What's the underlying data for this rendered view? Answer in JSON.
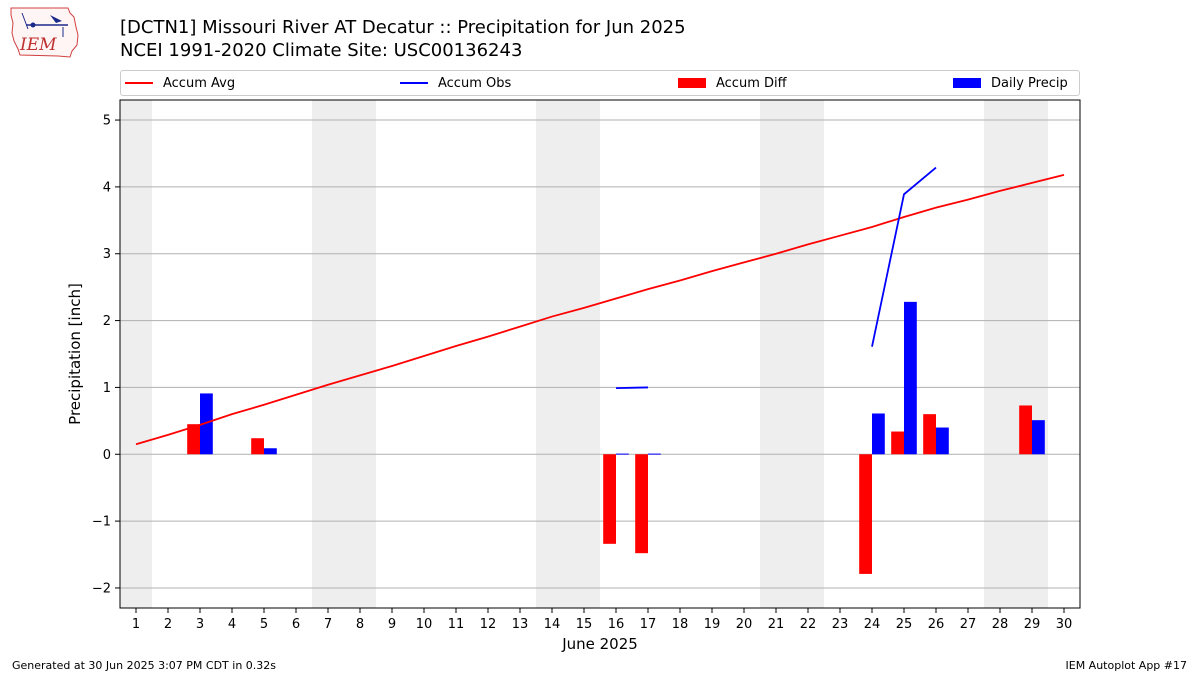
{
  "header": {
    "title_line1": "[DCTN1] Missouri River  AT Decatur :: Precipitation for Jun 2025",
    "title_line2": "NCEI 1991-2020 Climate Site: USC00136243"
  },
  "logo": {
    "text": "IEM"
  },
  "footer": {
    "generated": "Generated at 30 Jun 2025 3:07 PM CDT in 0.32s",
    "app": "IEM Autoplot App #17"
  },
  "legend": [
    {
      "label": "Accum Avg",
      "kind": "line",
      "color": "#ff0000"
    },
    {
      "label": "Accum Obs",
      "kind": "line",
      "color": "#0000ff"
    },
    {
      "label": "Accum Diff",
      "kind": "patch",
      "color": "#ff0000"
    },
    {
      "label": "Daily Precip",
      "kind": "patch",
      "color": "#0000ff"
    }
  ],
  "chart_data": {
    "type": "bar",
    "xlabel": "June 2025",
    "ylabel": "Precipitation [inch]",
    "x": [
      1,
      2,
      3,
      4,
      5,
      6,
      7,
      8,
      9,
      10,
      11,
      12,
      13,
      14,
      15,
      16,
      17,
      18,
      19,
      20,
      21,
      22,
      23,
      24,
      25,
      26,
      27,
      28,
      29,
      30
    ],
    "xlim": [
      0.5,
      30.5
    ],
    "ylim": [
      -2.3,
      5.3
    ],
    "yticks": [
      -2,
      -1,
      0,
      1,
      2,
      3,
      4,
      5
    ],
    "ytick_labels": [
      "−2",
      "−1",
      "0",
      "1",
      "2",
      "3",
      "4",
      "5"
    ],
    "grid": "horizontal",
    "weekend_shading_days": [
      1,
      7,
      8,
      14,
      15,
      21,
      22,
      28,
      29
    ],
    "weekend_color": "#eeeeee",
    "accum_avg": [
      0.15,
      0.29,
      0.44,
      0.6,
      0.74,
      0.89,
      1.04,
      1.18,
      1.32,
      1.47,
      1.62,
      1.76,
      1.91,
      2.06,
      2.19,
      2.33,
      2.47,
      2.6,
      2.74,
      2.87,
      3.0,
      3.14,
      3.27,
      3.4,
      3.55,
      3.69,
      3.81,
      3.94,
      4.06,
      4.18
    ],
    "accum_obs_segments": [
      {
        "days": [
          16,
          17
        ],
        "values": [
          0.99,
          1.0
        ]
      },
      {
        "days": [
          24,
          25,
          26
        ],
        "values": [
          1.61,
          3.89,
          4.29
        ]
      }
    ],
    "accum_diff": [
      {
        "day": 3,
        "value": 0.45
      },
      {
        "day": 5,
        "value": 0.24
      },
      {
        "day": 16,
        "value": -1.34
      },
      {
        "day": 17,
        "value": -1.48
      },
      {
        "day": 24,
        "value": -1.79
      },
      {
        "day": 25,
        "value": 0.34
      },
      {
        "day": 26,
        "value": 0.6
      },
      {
        "day": 29,
        "value": 0.73
      }
    ],
    "daily_precip": [
      {
        "day": 3,
        "value": 0.91
      },
      {
        "day": 5,
        "value": 0.09
      },
      {
        "day": 16,
        "value": 0.01
      },
      {
        "day": 17,
        "value": 0.01
      },
      {
        "day": 24,
        "value": 0.61
      },
      {
        "day": 25,
        "value": 2.28
      },
      {
        "day": 26,
        "value": 0.4
      },
      {
        "day": 29,
        "value": 0.51
      }
    ],
    "colors": {
      "avg": "#ff0000",
      "obs": "#0000ff",
      "diff": "#ff0000",
      "precip": "#0000ff",
      "grid": "#b0b0b0"
    }
  }
}
